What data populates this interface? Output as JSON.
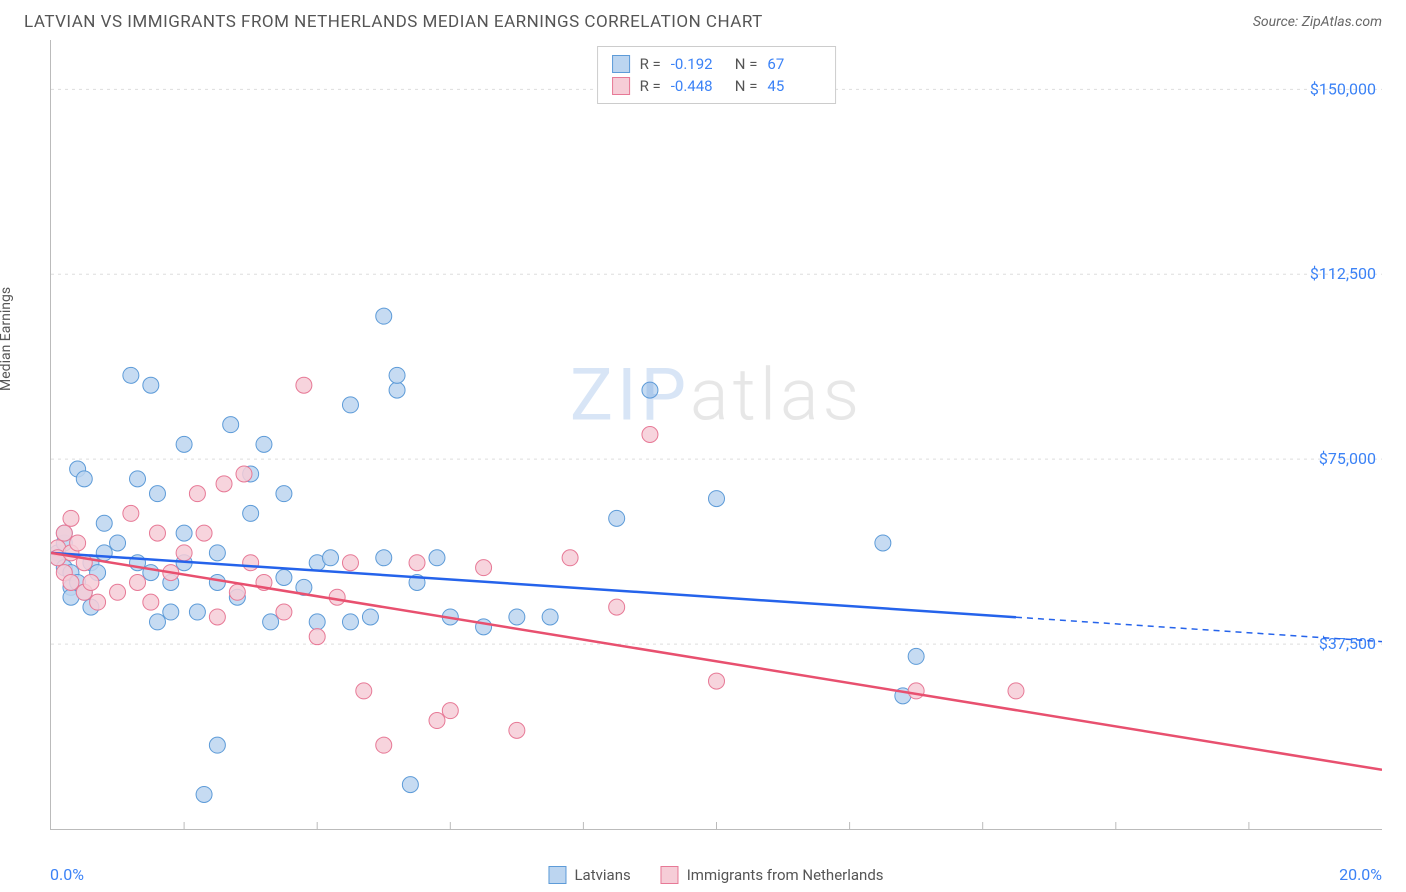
{
  "header": {
    "title": "LATVIAN VS IMMIGRANTS FROM NETHERLANDS MEDIAN EARNINGS CORRELATION CHART",
    "source": "Source: ZipAtlas.com"
  },
  "watermark": {
    "z": "ZIP",
    "rest": "atlas"
  },
  "y_axis": {
    "label": "Median Earnings",
    "min": 0,
    "max": 160000,
    "ticks": [
      37500,
      75000,
      112500,
      150000
    ],
    "tick_labels": [
      "$37,500",
      "$75,000",
      "$112,500",
      "$150,000"
    ],
    "tick_color": "#3b82f6",
    "grid_color": "#dddddd"
  },
  "x_axis": {
    "min": 0,
    "max": 20,
    "min_label": "0.0%",
    "max_label": "20.0%",
    "ticks": [
      2,
      4,
      6,
      8,
      10,
      12,
      14,
      16,
      18
    ],
    "label_color": "#3b82f6"
  },
  "series": [
    {
      "id": "latvians",
      "label": "Latvians",
      "R": "-0.192",
      "N": "67",
      "marker_fill": "#bcd5f0",
      "marker_stroke": "#5d9bd8",
      "trend_color": "#2563eb",
      "trend": {
        "y_at_x0": 56000,
        "y_at_x20": 38000,
        "solid_until_x": 14.5
      },
      "points": [
        [
          0.1,
          56000
        ],
        [
          0.1,
          55000
        ],
        [
          0.2,
          58000
        ],
        [
          0.2,
          53000
        ],
        [
          0.2,
          60000
        ],
        [
          0.3,
          49000
        ],
        [
          0.3,
          52000
        ],
        [
          0.3,
          47000
        ],
        [
          0.4,
          73000
        ],
        [
          0.4,
          50000
        ],
        [
          0.5,
          71000
        ],
        [
          0.5,
          48000
        ],
        [
          0.6,
          54000
        ],
        [
          0.6,
          45000
        ],
        [
          0.7,
          52000
        ],
        [
          0.8,
          56000
        ],
        [
          0.8,
          62000
        ],
        [
          1.0,
          58000
        ],
        [
          1.2,
          92000
        ],
        [
          1.3,
          54000
        ],
        [
          1.3,
          71000
        ],
        [
          1.5,
          90000
        ],
        [
          1.5,
          52000
        ],
        [
          1.6,
          42000
        ],
        [
          1.6,
          68000
        ],
        [
          1.8,
          44000
        ],
        [
          1.8,
          50000
        ],
        [
          2.0,
          54000
        ],
        [
          2.0,
          78000
        ],
        [
          2.0,
          60000
        ],
        [
          2.2,
          44000
        ],
        [
          2.3,
          7000
        ],
        [
          2.5,
          17000
        ],
        [
          2.5,
          50000
        ],
        [
          2.5,
          56000
        ],
        [
          2.7,
          82000
        ],
        [
          2.8,
          47000
        ],
        [
          3.0,
          64000
        ],
        [
          3.0,
          72000
        ],
        [
          3.2,
          78000
        ],
        [
          3.3,
          42000
        ],
        [
          3.5,
          68000
        ],
        [
          3.5,
          51000
        ],
        [
          3.8,
          49000
        ],
        [
          4.0,
          54000
        ],
        [
          4.0,
          42000
        ],
        [
          4.2,
          55000
        ],
        [
          4.5,
          86000
        ],
        [
          4.5,
          42000
        ],
        [
          4.8,
          43000
        ],
        [
          5.0,
          104000
        ],
        [
          5.0,
          55000
        ],
        [
          5.2,
          89000
        ],
        [
          5.2,
          92000
        ],
        [
          5.4,
          9000
        ],
        [
          5.5,
          50000
        ],
        [
          5.8,
          55000
        ],
        [
          6.0,
          43000
        ],
        [
          6.5,
          41000
        ],
        [
          7.0,
          43000
        ],
        [
          7.5,
          43000
        ],
        [
          8.5,
          63000
        ],
        [
          9.0,
          89000
        ],
        [
          10.0,
          67000
        ],
        [
          12.5,
          58000
        ],
        [
          12.8,
          27000
        ],
        [
          13.0,
          35000
        ]
      ]
    },
    {
      "id": "netherlands",
      "label": "Immigrants from Netherlands",
      "R": "-0.448",
      "N": "45",
      "marker_fill": "#f6cdd7",
      "marker_stroke": "#e77996",
      "trend_color": "#e8506f",
      "trend": {
        "y_at_x0": 56000,
        "y_at_x20": 12000,
        "solid_until_x": 20
      },
      "points": [
        [
          0.1,
          57000
        ],
        [
          0.1,
          55000
        ],
        [
          0.2,
          52000
        ],
        [
          0.2,
          60000
        ],
        [
          0.3,
          56000
        ],
        [
          0.3,
          63000
        ],
        [
          0.3,
          50000
        ],
        [
          0.4,
          58000
        ],
        [
          0.5,
          54000
        ],
        [
          0.5,
          48000
        ],
        [
          0.6,
          50000
        ],
        [
          0.7,
          46000
        ],
        [
          1.0,
          48000
        ],
        [
          1.2,
          64000
        ],
        [
          1.3,
          50000
        ],
        [
          1.5,
          46000
        ],
        [
          1.6,
          60000
        ],
        [
          1.8,
          52000
        ],
        [
          2.0,
          56000
        ],
        [
          2.2,
          68000
        ],
        [
          2.3,
          60000
        ],
        [
          2.5,
          43000
        ],
        [
          2.6,
          70000
        ],
        [
          2.8,
          48000
        ],
        [
          2.9,
          72000
        ],
        [
          3.0,
          54000
        ],
        [
          3.2,
          50000
        ],
        [
          3.5,
          44000
        ],
        [
          3.8,
          90000
        ],
        [
          4.0,
          39000
        ],
        [
          4.3,
          47000
        ],
        [
          4.5,
          54000
        ],
        [
          4.7,
          28000
        ],
        [
          5.0,
          17000
        ],
        [
          5.5,
          54000
        ],
        [
          5.8,
          22000
        ],
        [
          6.0,
          24000
        ],
        [
          6.5,
          53000
        ],
        [
          7.0,
          20000
        ],
        [
          7.8,
          55000
        ],
        [
          8.5,
          45000
        ],
        [
          9.0,
          80000
        ],
        [
          10.0,
          30000
        ],
        [
          13.0,
          28000
        ],
        [
          14.5,
          28000
        ]
      ]
    }
  ],
  "legend_top_labels": {
    "R": "R =",
    "N": "N ="
  },
  "marker_radius": 8,
  "plot_bg": "#ffffff"
}
